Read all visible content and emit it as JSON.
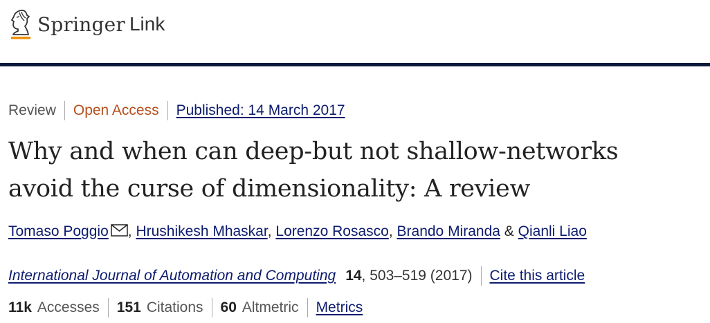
{
  "header": {
    "brand_primary": "Springer",
    "brand_secondary": "Link",
    "logo_icon": "springer-horse-icon",
    "accent_color": "#f28f00",
    "rule_color": "#0c1b3d"
  },
  "article": {
    "type": "Review",
    "access": "Open Access",
    "published": "Published: 14 March 2017",
    "title_line1": "Why and when can deep-but not shallow-networks",
    "title_line2": "avoid the curse of dimensionality: A review",
    "authors": [
      {
        "name": "Tomaso Poggio",
        "has_email": true
      },
      {
        "name": "Hrushikesh Mhaskar"
      },
      {
        "name": "Lorenzo Rosasco"
      },
      {
        "name": "Brando Miranda"
      },
      {
        "name": "Qianli Liao"
      }
    ],
    "author_separator": ",",
    "author_last_separator": "&",
    "journal": "International Journal of Automation and Computing",
    "volume": "14",
    "pages_year": ", 503–519 (2017)",
    "cite_label": "Cite this article"
  },
  "metrics": {
    "accesses_value": "11k",
    "accesses_label": "Accesses",
    "citations_value": "151",
    "citations_label": "Citations",
    "altmetric_value": "60",
    "altmetric_label": "Altmetric",
    "metrics_link": "Metrics"
  },
  "colors": {
    "link": "#0c1b6e",
    "open_access": "#b54e1b"
  }
}
